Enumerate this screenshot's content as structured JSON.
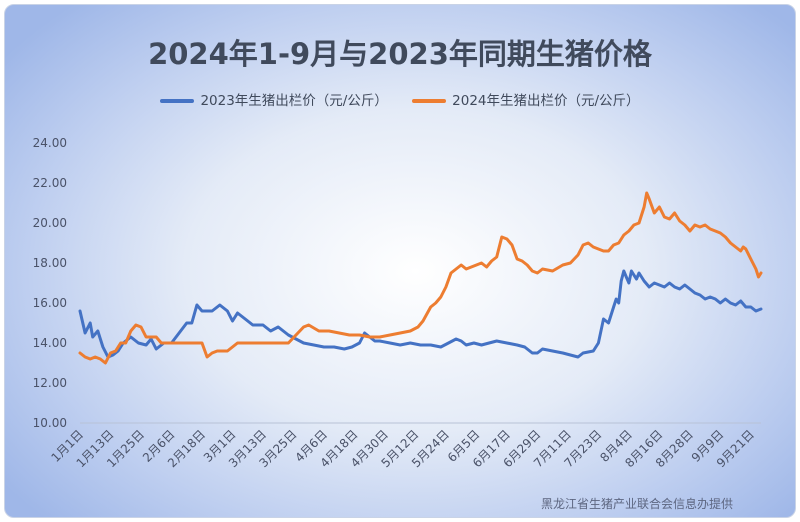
{
  "chart_data": {
    "type": "line",
    "title": "2024年1-9月与2023年同期生猪价格",
    "ylim": [
      10,
      24
    ],
    "y_ticks": [
      "10.00",
      "12.00",
      "14.00",
      "16.00",
      "18.00",
      "20.00",
      "22.00",
      "24.00"
    ],
    "x_tick_labels": [
      "1月1日",
      "1月13日",
      "1月25日",
      "2月6日",
      "2月18日",
      "3月1日",
      "3月13日",
      "3月25日",
      "4月6日",
      "4月18日",
      "4月30日",
      "5月12日",
      "5月24日",
      "6月5日",
      "6月17日",
      "6月29日",
      "7月11日",
      "7月23日",
      "8月4日",
      "8月16日",
      "8月28日",
      "9月9日",
      "9月21日"
    ],
    "x_tick_day_index": [
      0,
      12,
      24,
      36,
      48,
      60,
      72,
      84,
      96,
      108,
      120,
      132,
      144,
      156,
      168,
      180,
      192,
      204,
      216,
      228,
      240,
      252,
      264
    ],
    "legend_position": "top",
    "grid": false,
    "series": [
      {
        "name": "2023年生猪出栏价（元/公斤）",
        "color": "#4472C4",
        "points": [
          [
            0,
            15.6
          ],
          [
            2,
            14.5
          ],
          [
            4,
            15.0
          ],
          [
            5,
            14.3
          ],
          [
            7,
            14.6
          ],
          [
            9,
            13.8
          ],
          [
            11,
            13.3
          ],
          [
            13,
            13.4
          ],
          [
            15,
            13.6
          ],
          [
            17,
            14.0
          ],
          [
            20,
            14.3
          ],
          [
            23,
            14.0
          ],
          [
            26,
            13.9
          ],
          [
            28,
            14.2
          ],
          [
            30,
            13.7
          ],
          [
            33,
            14.0
          ],
          [
            36,
            14.0
          ],
          [
            39,
            14.5
          ],
          [
            42,
            15.0
          ],
          [
            44,
            15.0
          ],
          [
            46,
            15.9
          ],
          [
            48,
            15.6
          ],
          [
            52,
            15.6
          ],
          [
            55,
            15.9
          ],
          [
            58,
            15.6
          ],
          [
            60,
            15.1
          ],
          [
            62,
            15.5
          ],
          [
            65,
            15.2
          ],
          [
            68,
            14.9
          ],
          [
            72,
            14.9
          ],
          [
            75,
            14.6
          ],
          [
            78,
            14.8
          ],
          [
            82,
            14.4
          ],
          [
            85,
            14.2
          ],
          [
            88,
            14.0
          ],
          [
            92,
            13.9
          ],
          [
            96,
            13.8
          ],
          [
            100,
            13.8
          ],
          [
            104,
            13.7
          ],
          [
            107,
            13.8
          ],
          [
            110,
            14.0
          ],
          [
            112,
            14.5
          ],
          [
            114,
            14.3
          ],
          [
            116,
            14.1
          ],
          [
            118,
            14.1
          ],
          [
            122,
            14.0
          ],
          [
            126,
            13.9
          ],
          [
            130,
            14.0
          ],
          [
            134,
            13.9
          ],
          [
            138,
            13.9
          ],
          [
            142,
            13.8
          ],
          [
            145,
            14.0
          ],
          [
            148,
            14.2
          ],
          [
            150,
            14.1
          ],
          [
            152,
            13.9
          ],
          [
            155,
            14.0
          ],
          [
            158,
            13.9
          ],
          [
            161,
            14.0
          ],
          [
            164,
            14.1
          ],
          [
            168,
            14.0
          ],
          [
            172,
            13.9
          ],
          [
            175,
            13.8
          ],
          [
            178,
            13.5
          ],
          [
            180,
            13.5
          ],
          [
            182,
            13.7
          ],
          [
            186,
            13.6
          ],
          [
            190,
            13.5
          ],
          [
            193,
            13.4
          ],
          [
            196,
            13.3
          ],
          [
            198,
            13.5
          ],
          [
            202,
            13.6
          ],
          [
            204,
            14.0
          ],
          [
            206,
            15.2
          ],
          [
            208,
            15.0
          ],
          [
            210,
            15.8
          ],
          [
            211,
            16.2
          ],
          [
            212,
            16.0
          ],
          [
            213,
            17.1
          ],
          [
            214,
            17.6
          ],
          [
            215,
            17.3
          ],
          [
            216,
            17.0
          ],
          [
            217,
            17.6
          ],
          [
            218,
            17.4
          ],
          [
            219,
            17.2
          ],
          [
            220,
            17.5
          ],
          [
            222,
            17.1
          ],
          [
            224,
            16.8
          ],
          [
            226,
            17.0
          ],
          [
            228,
            16.9
          ],
          [
            230,
            16.8
          ],
          [
            232,
            17.0
          ],
          [
            234,
            16.8
          ],
          [
            236,
            16.7
          ],
          [
            238,
            16.9
          ],
          [
            240,
            16.7
          ],
          [
            242,
            16.5
          ],
          [
            244,
            16.4
          ],
          [
            246,
            16.2
          ],
          [
            248,
            16.3
          ],
          [
            250,
            16.2
          ],
          [
            252,
            16.0
          ],
          [
            254,
            16.2
          ],
          [
            256,
            16.0
          ],
          [
            258,
            15.9
          ],
          [
            260,
            16.1
          ],
          [
            262,
            15.8
          ],
          [
            264,
            15.8
          ],
          [
            266,
            15.6
          ],
          [
            268,
            15.7
          ]
        ]
      },
      {
        "name": "2024年生猪出栏价（元/公斤）",
        "color": "#ED7D31",
        "points": [
          [
            0,
            13.5
          ],
          [
            2,
            13.3
          ],
          [
            4,
            13.2
          ],
          [
            6,
            13.3
          ],
          [
            8,
            13.2
          ],
          [
            10,
            13.0
          ],
          [
            12,
            13.5
          ],
          [
            14,
            13.6
          ],
          [
            16,
            14.0
          ],
          [
            18,
            14.0
          ],
          [
            20,
            14.6
          ],
          [
            22,
            14.9
          ],
          [
            24,
            14.8
          ],
          [
            26,
            14.3
          ],
          [
            28,
            14.3
          ],
          [
            30,
            14.3
          ],
          [
            32,
            14.0
          ],
          [
            36,
            14.0
          ],
          [
            40,
            14.0
          ],
          [
            44,
            14.0
          ],
          [
            48,
            14.0
          ],
          [
            50,
            13.3
          ],
          [
            52,
            13.5
          ],
          [
            54,
            13.6
          ],
          [
            58,
            13.6
          ],
          [
            62,
            14.0
          ],
          [
            66,
            14.0
          ],
          [
            70,
            14.0
          ],
          [
            74,
            14.0
          ],
          [
            78,
            14.0
          ],
          [
            82,
            14.0
          ],
          [
            85,
            14.4
          ],
          [
            88,
            14.8
          ],
          [
            90,
            14.9
          ],
          [
            94,
            14.6
          ],
          [
            98,
            14.6
          ],
          [
            102,
            14.5
          ],
          [
            106,
            14.4
          ],
          [
            110,
            14.4
          ],
          [
            114,
            14.3
          ],
          [
            118,
            14.3
          ],
          [
            122,
            14.4
          ],
          [
            126,
            14.5
          ],
          [
            130,
            14.6
          ],
          [
            133,
            14.8
          ],
          [
            135,
            15.1
          ],
          [
            138,
            15.8
          ],
          [
            140,
            16.0
          ],
          [
            142,
            16.3
          ],
          [
            144,
            16.8
          ],
          [
            146,
            17.5
          ],
          [
            148,
            17.7
          ],
          [
            150,
            17.9
          ],
          [
            152,
            17.7
          ],
          [
            154,
            17.8
          ],
          [
            156,
            17.9
          ],
          [
            158,
            18.0
          ],
          [
            160,
            17.8
          ],
          [
            162,
            18.1
          ],
          [
            164,
            18.3
          ],
          [
            166,
            19.3
          ],
          [
            168,
            19.2
          ],
          [
            170,
            18.9
          ],
          [
            172,
            18.2
          ],
          [
            174,
            18.1
          ],
          [
            176,
            17.9
          ],
          [
            178,
            17.6
          ],
          [
            180,
            17.5
          ],
          [
            182,
            17.7
          ],
          [
            186,
            17.6
          ],
          [
            190,
            17.9
          ],
          [
            193,
            18.0
          ],
          [
            196,
            18.4
          ],
          [
            198,
            18.9
          ],
          [
            200,
            19.0
          ],
          [
            202,
            18.8
          ],
          [
            204,
            18.7
          ],
          [
            206,
            18.6
          ],
          [
            208,
            18.6
          ],
          [
            210,
            18.9
          ],
          [
            212,
            19.0
          ],
          [
            214,
            19.4
          ],
          [
            216,
            19.6
          ],
          [
            218,
            19.9
          ],
          [
            220,
            20.0
          ],
          [
            222,
            20.8
          ],
          [
            223,
            21.5
          ],
          [
            224,
            21.2
          ],
          [
            226,
            20.5
          ],
          [
            228,
            20.8
          ],
          [
            230,
            20.3
          ],
          [
            232,
            20.2
          ],
          [
            234,
            20.5
          ],
          [
            236,
            20.1
          ],
          [
            238,
            19.9
          ],
          [
            240,
            19.6
          ],
          [
            242,
            19.9
          ],
          [
            244,
            19.8
          ],
          [
            246,
            19.9
          ],
          [
            248,
            19.7
          ],
          [
            250,
            19.6
          ],
          [
            252,
            19.5
          ],
          [
            254,
            19.3
          ],
          [
            256,
            19.0
          ],
          [
            258,
            18.8
          ],
          [
            260,
            18.6
          ],
          [
            261,
            18.8
          ],
          [
            262,
            18.7
          ],
          [
            264,
            18.2
          ],
          [
            266,
            17.7
          ],
          [
            267,
            17.3
          ],
          [
            268,
            17.5
          ]
        ]
      }
    ]
  },
  "legend_items": [
    {
      "label": "2023年生猪出栏价（元/公斤）",
      "color": "#4472C4"
    },
    {
      "label": "2024年生猪出栏价（元/公斤）",
      "color": "#ED7D31"
    }
  ],
  "source_note": "黑龙江省生猪产业联合会信息办提供"
}
